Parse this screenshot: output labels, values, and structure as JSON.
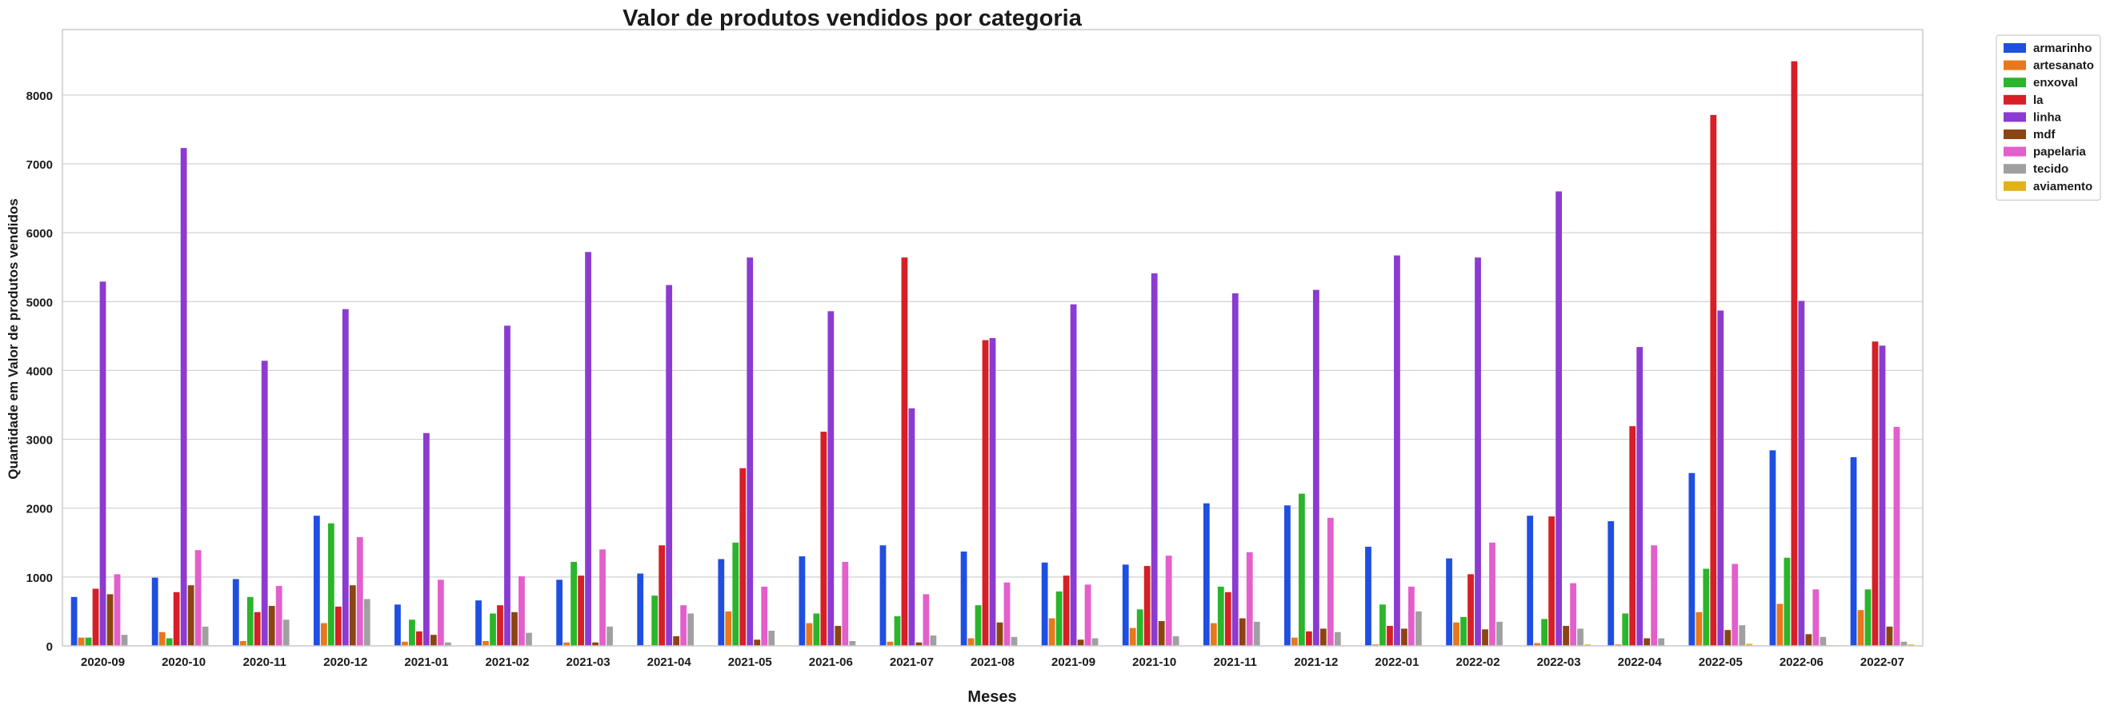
{
  "chart_data": {
    "type": "bar",
    "title": "Valor de produtos vendidos por categoria",
    "xlabel": "Meses",
    "ylabel": "Quantidade em Valor de produtos vendidos",
    "ylim": [
      0,
      8950
    ],
    "yticks": [
      0,
      1000,
      2000,
      3000,
      4000,
      5000,
      6000,
      7000,
      8000
    ],
    "grid": "horizontal",
    "legend_position": "top-right (outside)",
    "categories": [
      "2020-09",
      "2020-10",
      "2020-11",
      "2020-12",
      "2021-01",
      "2021-02",
      "2021-03",
      "2021-04",
      "2021-05",
      "2021-06",
      "2021-07",
      "2021-08",
      "2021-09",
      "2021-10",
      "2021-11",
      "2021-12",
      "2022-01",
      "2022-02",
      "2022-03",
      "2022-04",
      "2022-05",
      "2022-06",
      "2022-07"
    ],
    "series": [
      {
        "name": "armarinho",
        "color": "#1f4fe0",
        "values": [
          710,
          990,
          970,
          1890,
          600,
          660,
          960,
          1050,
          1260,
          1300,
          1460,
          1370,
          1210,
          1180,
          2070,
          2040,
          1440,
          1270,
          1890,
          1810,
          2510,
          2840,
          2740
        ]
      },
      {
        "name": "artesanato",
        "color": "#e8781c",
        "values": [
          120,
          200,
          70,
          330,
          60,
          70,
          50,
          10,
          500,
          330,
          60,
          110,
          400,
          260,
          330,
          120,
          20,
          340,
          40,
          20,
          490,
          610,
          520
        ]
      },
      {
        "name": "enxoval",
        "color": "#2ab52a",
        "values": [
          120,
          110,
          710,
          1780,
          380,
          470,
          1220,
          730,
          1500,
          470,
          430,
          590,
          790,
          530,
          860,
          2210,
          600,
          420,
          390,
          470,
          1120,
          1280,
          820
        ]
      },
      {
        "name": "la",
        "color": "#d61f26",
        "values": [
          830,
          780,
          490,
          570,
          210,
          590,
          1020,
          1460,
          2580,
          3110,
          5640,
          4440,
          1020,
          1160,
          780,
          210,
          290,
          1040,
          1880,
          3190,
          7710,
          8490,
          4420
        ]
      },
      {
        "name": "linha",
        "color": "#8b3bd1",
        "values": [
          5290,
          7230,
          4140,
          4890,
          3090,
          4650,
          5720,
          5240,
          5640,
          4860,
          3450,
          4470,
          4960,
          5410,
          5120,
          5170,
          5670,
          5640,
          6600,
          4340,
          4870,
          5010,
          4360
        ]
      },
      {
        "name": "mdf",
        "color": "#8b4513",
        "values": [
          750,
          880,
          580,
          880,
          160,
          490,
          50,
          140,
          90,
          290,
          50,
          340,
          90,
          360,
          400,
          250,
          250,
          240,
          290,
          110,
          230,
          170,
          280
        ]
      },
      {
        "name": "papelaria",
        "color": "#e35fcb",
        "values": [
          1040,
          1390,
          870,
          1580,
          960,
          1010,
          1400,
          590,
          860,
          1220,
          750,
          920,
          890,
          1310,
          1360,
          1860,
          860,
          1500,
          910,
          1460,
          1190,
          820,
          3180
        ]
      },
      {
        "name": "tecido",
        "color": "#a0a0a0",
        "values": [
          160,
          280,
          380,
          680,
          50,
          190,
          280,
          470,
          220,
          70,
          150,
          130,
          110,
          140,
          350,
          200,
          500,
          350,
          250,
          110,
          300,
          130,
          60
        ]
      },
      {
        "name": "aviamento",
        "color": "#e3b11a",
        "values": [
          0,
          0,
          0,
          0,
          0,
          0,
          0,
          0,
          0,
          0,
          0,
          0,
          0,
          0,
          0,
          0,
          0,
          0,
          20,
          0,
          30,
          10,
          20
        ]
      }
    ]
  }
}
